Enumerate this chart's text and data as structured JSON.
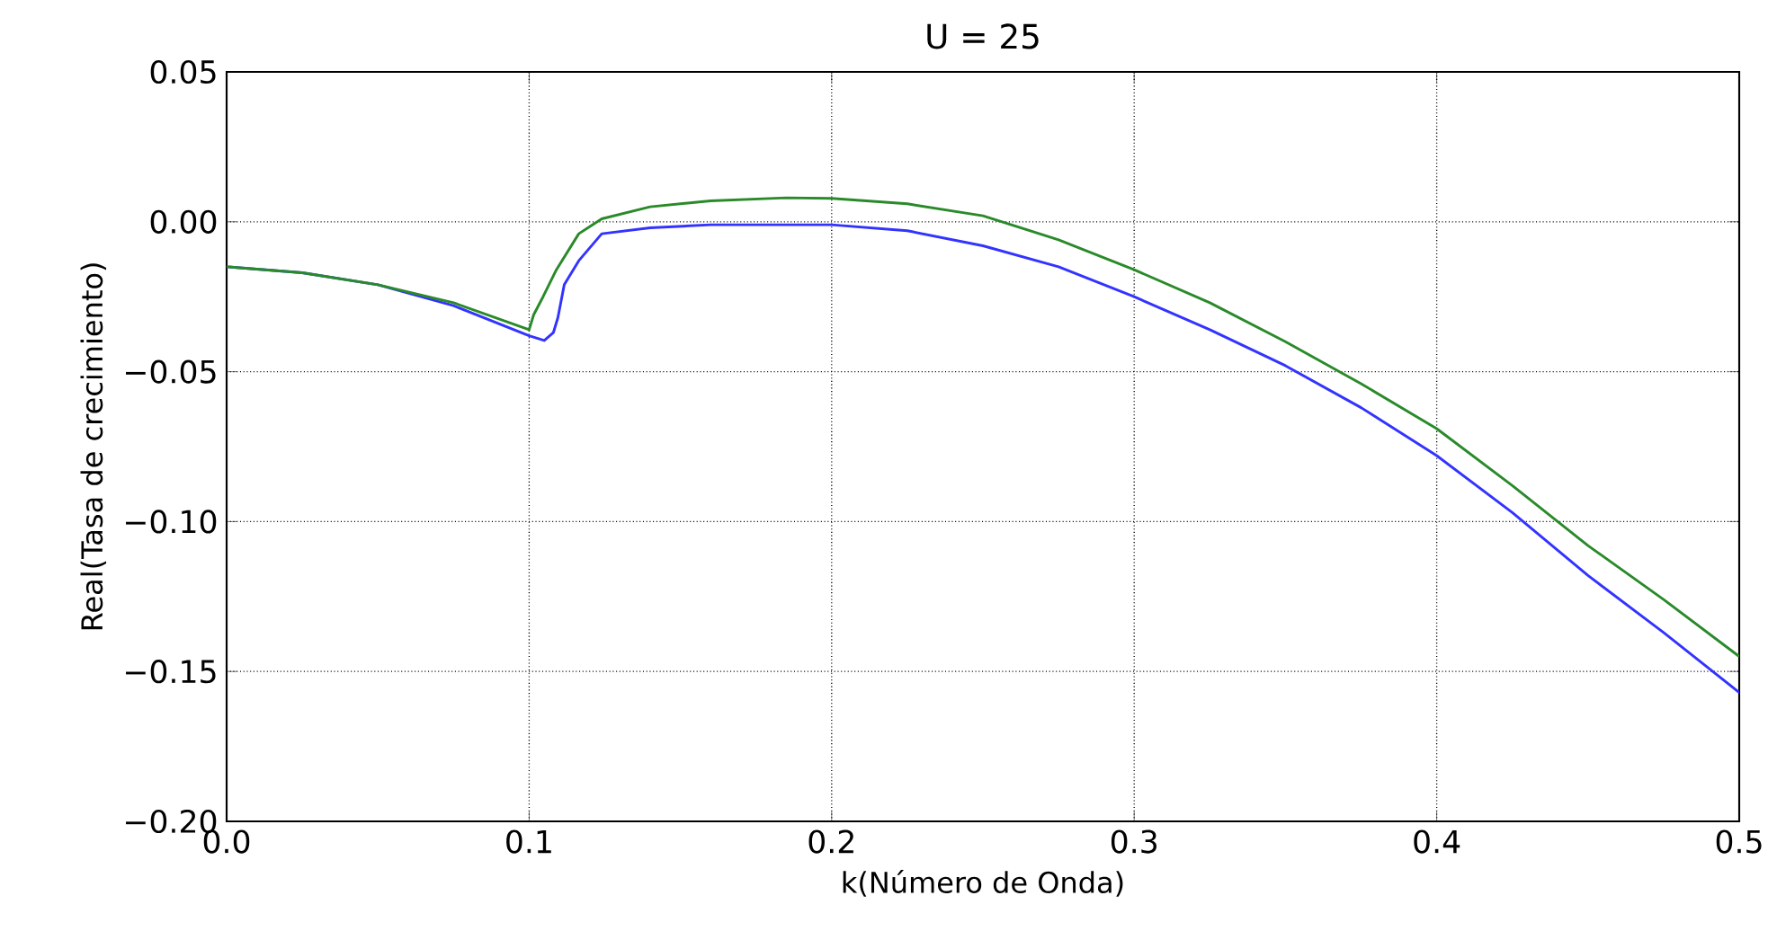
{
  "chart_data": {
    "type": "line",
    "title": "U =  25",
    "xlabel": "k(Número de Onda)",
    "ylabel": "Real(Tasa de crecimiento)",
    "xlim": [
      0,
      0.5
    ],
    "ylim": [
      -0.2,
      0.05
    ],
    "xticks": [
      {
        "value": 0,
        "label": "0.0"
      },
      0.1,
      0.2,
      0.3,
      0.4,
      0.5
    ],
    "yticks": [
      {
        "value": -0.2,
        "label": "−0.20"
      },
      {
        "value": -0.15,
        "label": "−0.15"
      },
      {
        "value": -0.1,
        "label": "−0.10"
      },
      {
        "value": -0.05,
        "label": "−0.05"
      },
      {
        "value": 0,
        "label": "0.00"
      },
      {
        "value": 0.05,
        "label": "0.05"
      }
    ],
    "grid": true,
    "line_style": "solid",
    "series": [
      {
        "color": "#3333ff",
        "x": [
          0,
          0.025,
          0.05,
          0.075,
          0.1,
          0.105,
          0.108,
          0.1095,
          0.1116,
          0.1164,
          0.124,
          0.14,
          0.16,
          0.19,
          0.2,
          0.225,
          0.25,
          0.275,
          0.3,
          0.325,
          0.35,
          0.375,
          0.4,
          0.425,
          0.45,
          0.475,
          0.5
        ],
        "values": [
          -0.015,
          -0.017,
          -0.021,
          -0.028,
          -0.038,
          -0.0396,
          -0.037,
          -0.032,
          -0.021,
          -0.013,
          -0.004,
          -0.002,
          -0.001,
          -0.001,
          -0.001,
          -0.003,
          -0.008,
          -0.015,
          -0.025,
          -0.036,
          -0.048,
          -0.062,
          -0.078,
          -0.097,
          -0.118,
          -0.137,
          -0.157
        ]
      },
      {
        "color": "#2a8a2a",
        "x": [
          0,
          0.025,
          0.05,
          0.075,
          0.1,
          0.1015,
          0.1046,
          0.109,
          0.1164,
          0.124,
          0.14,
          0.16,
          0.185,
          0.2,
          0.225,
          0.25,
          0.275,
          0.3,
          0.325,
          0.35,
          0.375,
          0.4,
          0.425,
          0.45,
          0.475,
          0.5
        ],
        "values": [
          -0.015,
          -0.017,
          -0.021,
          -0.027,
          -0.036,
          -0.031,
          -0.025,
          -0.016,
          -0.004,
          0.001,
          0.005,
          0.007,
          0.008,
          0.0078,
          0.006,
          0.002,
          -0.006,
          -0.016,
          -0.027,
          -0.04,
          -0.054,
          -0.069,
          -0.088,
          -0.108,
          -0.126,
          -0.145
        ]
      }
    ]
  }
}
